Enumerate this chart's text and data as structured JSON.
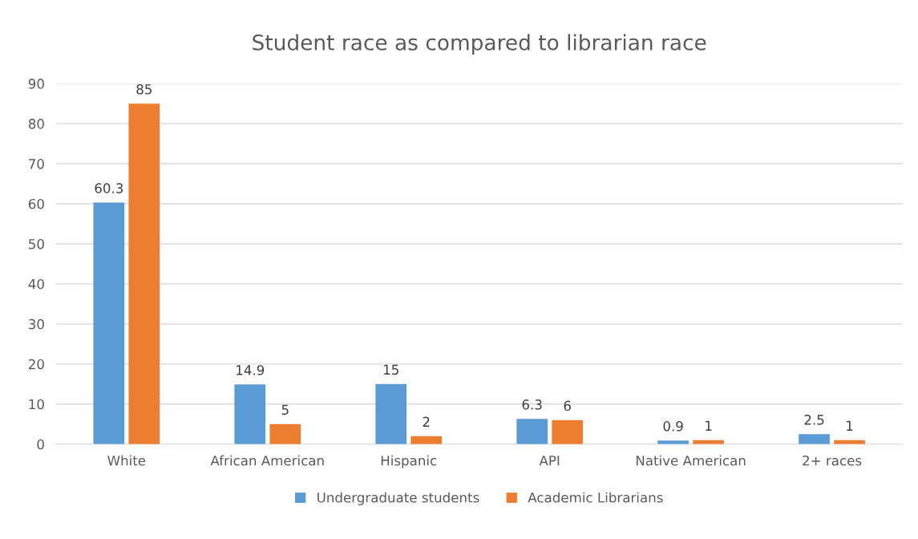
{
  "chart_data": {
    "type": "bar",
    "title": "Student race as compared to librarian race",
    "categories": [
      "White",
      "African American",
      "Hispanic",
      "API",
      "Native American",
      "2+ races"
    ],
    "series": [
      {
        "name": "Undergraduate students",
        "color": "#5b9bd5",
        "values": [
          60.3,
          14.9,
          15,
          6.3,
          0.9,
          2.5
        ]
      },
      {
        "name": "Academic Librarians",
        "color": "#ed7d31",
        "values": [
          85,
          5,
          2,
          6,
          1,
          1
        ]
      }
    ],
    "ylim": [
      0,
      90
    ],
    "yticks": [
      0,
      10,
      20,
      30,
      40,
      50,
      60,
      70,
      80,
      90
    ],
    "grid": "y",
    "legend": "bottom",
    "data_labels": true
  }
}
